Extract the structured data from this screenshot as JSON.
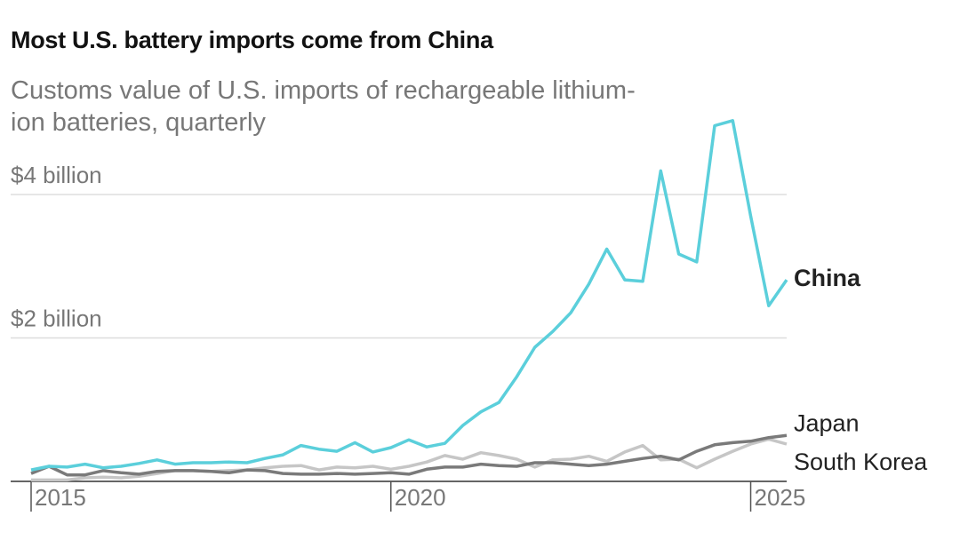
{
  "chart_data": {
    "type": "line",
    "title": "Most U.S. battery imports come from China",
    "subtitle": "Customs value of U.S. imports of rechargeable lithium-ion batteries, quarterly",
    "x": [
      2015,
      2015.25,
      2015.5,
      2015.75,
      2016,
      2016.25,
      2016.5,
      2016.75,
      2017,
      2017.25,
      2017.5,
      2017.75,
      2018,
      2018.25,
      2018.5,
      2018.75,
      2019,
      2019.25,
      2019.5,
      2019.75,
      2020,
      2020.25,
      2020.5,
      2020.75,
      2021,
      2021.25,
      2021.5,
      2021.75,
      2022,
      2022.25,
      2022.5,
      2022.75,
      2023,
      2023.25,
      2023.5,
      2023.75,
      2024,
      2024.25,
      2024.5,
      2024.75,
      2025,
      2025.25,
      2025.5
    ],
    "series": [
      {
        "name": "China",
        "color": "#5bcfdb",
        "values": [
          0.16,
          0.21,
          0.2,
          0.24,
          0.19,
          0.21,
          0.25,
          0.3,
          0.24,
          0.26,
          0.26,
          0.27,
          0.26,
          0.32,
          0.37,
          0.5,
          0.45,
          0.42,
          0.54,
          0.41,
          0.47,
          0.58,
          0.48,
          0.53,
          0.78,
          0.97,
          1.1,
          1.46,
          1.87,
          2.09,
          2.35,
          2.75,
          3.24,
          2.81,
          2.79,
          4.33,
          3.17,
          3.06,
          4.96,
          5.03,
          3.7,
          2.45,
          2.81
        ]
      },
      {
        "name": "Japan",
        "color": "#7a7a7a",
        "values": [
          0.11,
          0.21,
          0.09,
          0.09,
          0.15,
          0.12,
          0.1,
          0.14,
          0.15,
          0.15,
          0.14,
          0.12,
          0.16,
          0.15,
          0.11,
          0.1,
          0.1,
          0.11,
          0.1,
          0.11,
          0.12,
          0.1,
          0.17,
          0.2,
          0.2,
          0.24,
          0.22,
          0.21,
          0.26,
          0.26,
          0.24,
          0.22,
          0.24,
          0.28,
          0.32,
          0.35,
          0.3,
          0.42,
          0.51,
          0.54,
          0.56,
          0.61,
          0.64
        ]
      },
      {
        "name": "South Korea",
        "color": "#c6c6c6",
        "values": [
          0.02,
          0.02,
          0.02,
          0.05,
          0.06,
          0.05,
          0.07,
          0.11,
          0.15,
          0.15,
          0.14,
          0.15,
          0.16,
          0.19,
          0.21,
          0.22,
          0.16,
          0.2,
          0.19,
          0.21,
          0.17,
          0.21,
          0.27,
          0.36,
          0.31,
          0.4,
          0.36,
          0.31,
          0.2,
          0.3,
          0.31,
          0.35,
          0.28,
          0.41,
          0.5,
          0.3,
          0.31,
          0.19,
          0.31,
          0.42,
          0.52,
          0.59,
          0.52
        ]
      }
    ],
    "xlim": [
      2015,
      2025.5
    ],
    "xticks": [
      2015,
      2020,
      2025
    ],
    "ylim": [
      0,
      5.1
    ],
    "yticks": [
      {
        "value": 2,
        "label": "$2 billion"
      },
      {
        "value": 4,
        "label": "$4 billion"
      }
    ],
    "grid": true
  }
}
